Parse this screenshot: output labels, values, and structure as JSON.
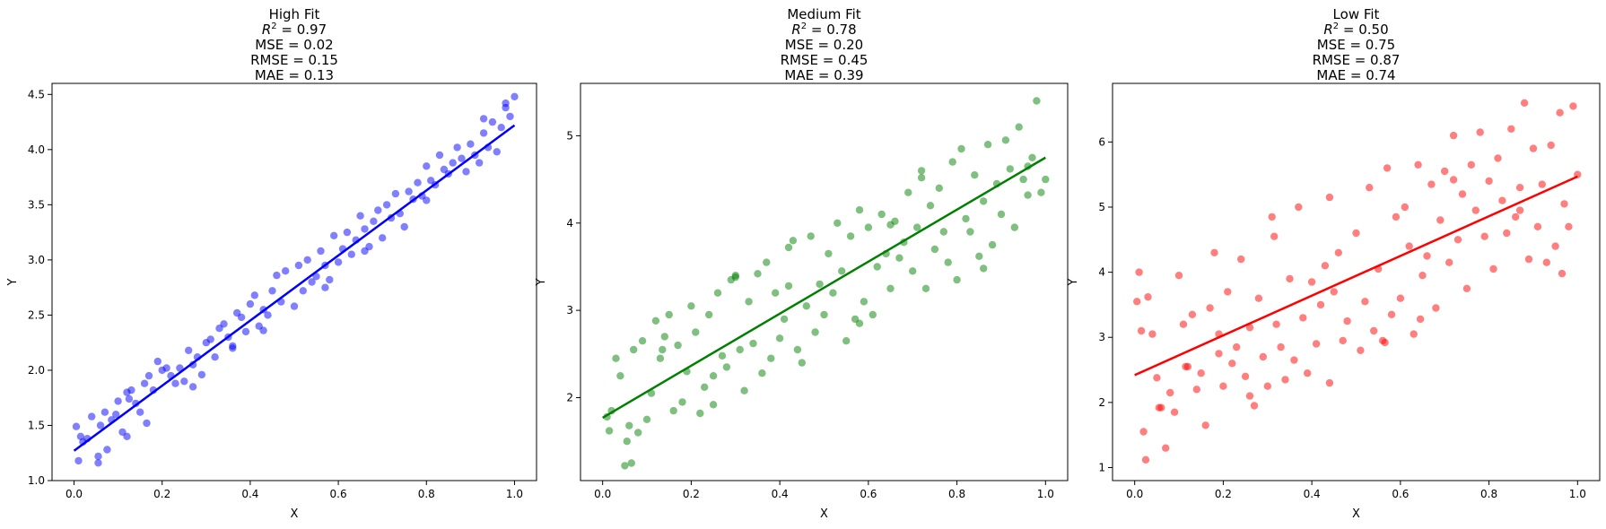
{
  "chart_data": [
    {
      "type": "scatter",
      "title": "High Fit",
      "metrics": [
        "R^2 = 0.97",
        "MSE = 0.02",
        "RMSE = 0.15",
        "MAE = 0.13"
      ],
      "xlabel": "X",
      "ylabel": "Y",
      "xlim": [
        -0.05,
        1.05
      ],
      "ylim": [
        1.0,
        4.6
      ],
      "xticks": [
        0.0,
        0.2,
        0.4,
        0.6,
        0.8,
        1.0
      ],
      "xtick_labels": [
        "0.0",
        "0.2",
        "0.4",
        "0.6",
        "0.8",
        "1.0"
      ],
      "yticks": [
        1.0,
        1.5,
        2.0,
        2.5,
        3.0,
        3.5,
        4.0,
        4.5
      ],
      "ytick_labels": [
        "1.0",
        "1.5",
        "2.0",
        "2.5",
        "3.0",
        "3.5",
        "4.0",
        "4.5"
      ],
      "color": "#0000ff",
      "grid": false,
      "fit_line": {
        "x": [
          0.0,
          1.0
        ],
        "y": [
          1.27,
          4.22
        ]
      },
      "points": {
        "x": [
          0.005,
          0.01,
          0.015,
          0.02,
          0.03,
          0.04,
          0.055,
          0.06,
          0.07,
          0.075,
          0.085,
          0.095,
          0.1,
          0.11,
          0.12,
          0.125,
          0.13,
          0.14,
          0.15,
          0.16,
          0.17,
          0.18,
          0.19,
          0.2,
          0.21,
          0.22,
          0.23,
          0.24,
          0.25,
          0.26,
          0.27,
          0.28,
          0.29,
          0.3,
          0.31,
          0.32,
          0.33,
          0.34,
          0.35,
          0.36,
          0.37,
          0.38,
          0.39,
          0.4,
          0.41,
          0.42,
          0.43,
          0.44,
          0.45,
          0.46,
          0.47,
          0.48,
          0.5,
          0.51,
          0.52,
          0.53,
          0.54,
          0.55,
          0.56,
          0.57,
          0.58,
          0.59,
          0.6,
          0.61,
          0.62,
          0.63,
          0.64,
          0.65,
          0.66,
          0.67,
          0.68,
          0.69,
          0.7,
          0.71,
          0.72,
          0.73,
          0.74,
          0.75,
          0.76,
          0.77,
          0.78,
          0.79,
          0.8,
          0.81,
          0.82,
          0.83,
          0.84,
          0.85,
          0.86,
          0.87,
          0.88,
          0.89,
          0.9,
          0.91,
          0.92,
          0.93,
          0.94,
          0.95,
          0.96,
          0.97,
          0.98,
          0.99,
          1.0,
          0.055,
          0.12,
          0.165,
          0.27,
          0.36,
          0.43,
          0.57,
          0.66,
          0.8,
          0.93,
          0.98
        ],
        "y": [
          1.49,
          1.18,
          1.4,
          1.35,
          1.38,
          1.58,
          1.22,
          1.5,
          1.62,
          1.28,
          1.55,
          1.6,
          1.72,
          1.44,
          1.8,
          1.74,
          1.82,
          1.7,
          1.62,
          1.88,
          1.95,
          1.82,
          2.08,
          2.0,
          2.02,
          1.95,
          1.88,
          2.02,
          1.9,
          2.18,
          2.05,
          2.12,
          1.96,
          2.25,
          2.28,
          2.12,
          2.38,
          2.42,
          2.3,
          2.2,
          2.52,
          2.48,
          2.35,
          2.6,
          2.68,
          2.4,
          2.55,
          2.5,
          2.72,
          2.86,
          2.62,
          2.9,
          2.58,
          2.95,
          2.72,
          3.0,
          2.8,
          2.85,
          3.08,
          2.95,
          2.82,
          3.22,
          2.98,
          3.1,
          3.25,
          3.05,
          3.18,
          3.4,
          3.28,
          3.12,
          3.35,
          3.45,
          3.2,
          3.5,
          3.38,
          3.6,
          3.42,
          3.3,
          3.62,
          3.55,
          3.7,
          3.58,
          3.85,
          3.72,
          3.68,
          3.95,
          3.82,
          3.78,
          3.88,
          4.02,
          3.92,
          3.8,
          4.05,
          3.95,
          3.88,
          4.15,
          4.02,
          4.25,
          3.98,
          4.2,
          4.38,
          4.3,
          4.48,
          1.16,
          1.4,
          1.52,
          1.85,
          2.22,
          2.36,
          2.75,
          3.08,
          3.54,
          4.28,
          4.42
        ]
      }
    },
    {
      "type": "scatter",
      "title": "Medium Fit",
      "metrics": [
        "R^2 = 0.78",
        "MSE = 0.20",
        "RMSE = 0.45",
        "MAE = 0.39"
      ],
      "xlabel": "X",
      "ylabel": "Y",
      "xlim": [
        -0.05,
        1.05
      ],
      "ylim": [
        1.05,
        5.6
      ],
      "xticks": [
        0.0,
        0.2,
        0.4,
        0.6,
        0.8,
        1.0
      ],
      "xtick_labels": [
        "0.0",
        "0.2",
        "0.4",
        "0.6",
        "0.8",
        "1.0"
      ],
      "yticks": [
        2,
        3,
        4,
        5
      ],
      "ytick_labels": [
        "2",
        "3",
        "4",
        "5"
      ],
      "color": "#008000",
      "grid": false,
      "fit_line": {
        "x": [
          0.0,
          1.0
        ],
        "y": [
          1.77,
          4.75
        ]
      },
      "points": {
        "x": [
          0.01,
          0.015,
          0.02,
          0.03,
          0.04,
          0.05,
          0.055,
          0.06,
          0.07,
          0.08,
          0.09,
          0.1,
          0.11,
          0.12,
          0.13,
          0.14,
          0.15,
          0.16,
          0.17,
          0.18,
          0.19,
          0.2,
          0.21,
          0.22,
          0.23,
          0.24,
          0.25,
          0.26,
          0.27,
          0.28,
          0.29,
          0.3,
          0.31,
          0.32,
          0.33,
          0.34,
          0.35,
          0.36,
          0.37,
          0.38,
          0.39,
          0.4,
          0.41,
          0.42,
          0.43,
          0.44,
          0.45,
          0.46,
          0.47,
          0.48,
          0.49,
          0.5,
          0.51,
          0.52,
          0.53,
          0.54,
          0.55,
          0.56,
          0.57,
          0.58,
          0.59,
          0.6,
          0.61,
          0.62,
          0.63,
          0.64,
          0.65,
          0.66,
          0.67,
          0.68,
          0.69,
          0.7,
          0.71,
          0.72,
          0.73,
          0.74,
          0.75,
          0.76,
          0.77,
          0.78,
          0.79,
          0.8,
          0.81,
          0.82,
          0.83,
          0.84,
          0.85,
          0.86,
          0.87,
          0.88,
          0.89,
          0.9,
          0.91,
          0.92,
          0.93,
          0.94,
          0.95,
          0.96,
          0.97,
          0.98,
          0.99,
          1.0,
          0.065,
          0.135,
          0.25,
          0.3,
          0.42,
          0.58,
          0.65,
          0.72,
          0.86,
          0.96
        ],
        "y": [
          1.78,
          1.62,
          1.85,
          2.45,
          2.25,
          1.22,
          1.5,
          1.68,
          2.55,
          1.6,
          2.65,
          1.75,
          2.05,
          2.88,
          2.45,
          2.7,
          2.95,
          1.85,
          2.6,
          1.95,
          2.3,
          3.05,
          2.75,
          1.82,
          2.12,
          2.95,
          2.25,
          3.2,
          2.48,
          2.35,
          3.35,
          3.4,
          2.55,
          2.08,
          3.1,
          2.62,
          3.42,
          2.28,
          3.55,
          2.45,
          3.2,
          2.68,
          2.9,
          3.72,
          3.8,
          2.55,
          2.4,
          3.05,
          3.85,
          2.75,
          3.3,
          2.95,
          3.65,
          3.2,
          4.0,
          3.45,
          2.65,
          3.85,
          2.9,
          4.15,
          3.1,
          3.95,
          2.95,
          3.5,
          4.1,
          3.65,
          3.25,
          4.02,
          3.6,
          3.78,
          4.35,
          3.45,
          3.95,
          4.6,
          3.25,
          4.2,
          3.7,
          4.4,
          3.9,
          3.55,
          4.7,
          3.35,
          4.85,
          4.05,
          3.9,
          4.55,
          3.62,
          4.25,
          4.9,
          3.75,
          4.45,
          4.1,
          4.95,
          4.62,
          3.95,
          5.1,
          4.5,
          4.65,
          4.75,
          5.4,
          4.35,
          4.5,
          1.25,
          2.55,
          1.92,
          3.38,
          3.28,
          2.85,
          3.98,
          4.52,
          3.48,
          4.32
        ]
      }
    },
    {
      "type": "scatter",
      "title": "Low Fit",
      "metrics": [
        "R^2 = 0.50",
        "MSE = 0.75",
        "RMSE = 0.87",
        "MAE = 0.74"
      ],
      "xlabel": "X",
      "ylabel": "Y",
      "xlim": [
        -0.05,
        1.05
      ],
      "ylim": [
        0.8,
        6.9
      ],
      "xticks": [
        0.0,
        0.2,
        0.4,
        0.6,
        0.8,
        1.0
      ],
      "xtick_labels": [
        "0.0",
        "0.2",
        "0.4",
        "0.6",
        "0.8",
        "1.0"
      ],
      "yticks": [
        1,
        2,
        3,
        4,
        5,
        6
      ],
      "ytick_labels": [
        "1",
        "2",
        "3",
        "4",
        "5",
        "6"
      ],
      "color": "#ff0000",
      "grid": false,
      "fit_line": {
        "x": [
          0.0,
          1.0
        ],
        "y": [
          2.42,
          5.47
        ]
      },
      "points": {
        "x": [
          0.005,
          0.01,
          0.015,
          0.02,
          0.025,
          0.03,
          0.04,
          0.05,
          0.06,
          0.07,
          0.08,
          0.09,
          0.1,
          0.11,
          0.12,
          0.13,
          0.14,
          0.15,
          0.16,
          0.17,
          0.18,
          0.19,
          0.2,
          0.21,
          0.22,
          0.23,
          0.24,
          0.25,
          0.26,
          0.27,
          0.28,
          0.29,
          0.3,
          0.31,
          0.32,
          0.33,
          0.34,
          0.35,
          0.36,
          0.37,
          0.38,
          0.39,
          0.4,
          0.41,
          0.42,
          0.43,
          0.44,
          0.45,
          0.46,
          0.47,
          0.48,
          0.5,
          0.51,
          0.52,
          0.53,
          0.54,
          0.55,
          0.56,
          0.57,
          0.58,
          0.59,
          0.6,
          0.61,
          0.62,
          0.63,
          0.64,
          0.65,
          0.66,
          0.67,
          0.68,
          0.69,
          0.7,
          0.71,
          0.72,
          0.73,
          0.74,
          0.75,
          0.76,
          0.77,
          0.78,
          0.79,
          0.8,
          0.81,
          0.82,
          0.83,
          0.84,
          0.85,
          0.86,
          0.87,
          0.88,
          0.89,
          0.9,
          0.91,
          0.92,
          0.93,
          0.94,
          0.95,
          0.96,
          0.97,
          0.98,
          0.99,
          1.0,
          0.055,
          0.115,
          0.19,
          0.26,
          0.315,
          0.44,
          0.565,
          0.645,
          0.72,
          0.87,
          0.965
        ],
        "y": [
          3.55,
          4.0,
          3.1,
          1.55,
          1.12,
          3.62,
          3.05,
          2.38,
          1.92,
          1.3,
          2.15,
          1.85,
          3.95,
          3.2,
          2.55,
          3.35,
          2.2,
          2.45,
          1.65,
          3.45,
          4.3,
          2.75,
          2.25,
          3.7,
          2.6,
          2.85,
          4.2,
          2.4,
          3.15,
          1.95,
          3.6,
          2.7,
          2.25,
          4.85,
          3.2,
          2.85,
          2.35,
          3.9,
          2.65,
          5.0,
          3.3,
          2.45,
          3.85,
          2.9,
          3.5,
          4.1,
          2.3,
          3.7,
          4.3,
          2.95,
          3.25,
          4.6,
          2.8,
          3.55,
          5.3,
          3.1,
          4.05,
          2.95,
          5.6,
          3.35,
          4.85,
          3.6,
          5.0,
          4.4,
          3.05,
          5.65,
          3.95,
          4.25,
          5.35,
          3.45,
          4.8,
          5.55,
          4.15,
          6.1,
          4.5,
          5.2,
          3.75,
          5.65,
          4.95,
          6.15,
          4.55,
          5.4,
          4.05,
          5.75,
          5.1,
          4.6,
          6.2,
          4.85,
          5.3,
          6.6,
          4.2,
          5.9,
          4.7,
          5.35,
          4.15,
          5.95,
          4.4,
          6.45,
          5.05,
          4.7,
          6.55,
          5.5,
          1.92,
          2.55,
          3.05,
          2.1,
          4.55,
          5.15,
          2.92,
          3.28,
          5.42,
          4.95,
          3.98
        ]
      }
    }
  ]
}
